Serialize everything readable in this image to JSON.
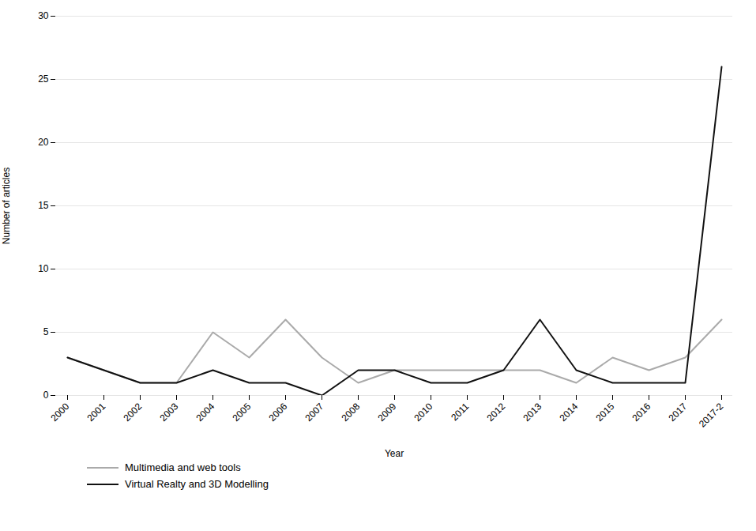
{
  "chart_data": {
    "type": "line",
    "xlabel": "Year",
    "ylabel": "Number of articles",
    "categories": [
      "2000",
      "2001",
      "2002",
      "2003",
      "2004",
      "2005",
      "2006",
      "2007",
      "2008",
      "2009",
      "2010",
      "2011",
      "2012",
      "2013",
      "2014",
      "2015",
      "2016",
      "2017",
      "2017-2"
    ],
    "series": [
      {
        "name": "Multimedia and web tools",
        "color": "#aaaaaa",
        "values": [
          3,
          2,
          1,
          1,
          5,
          3,
          6,
          3,
          1,
          2,
          2,
          2,
          2,
          2,
          1,
          3,
          2,
          3,
          6
        ]
      },
      {
        "name": "Virtual Realty and 3D Modelling",
        "color": "#111111",
        "values": [
          3,
          2,
          1,
          1,
          2,
          1,
          1,
          0,
          2,
          2,
          1,
          1,
          2,
          6,
          2,
          1,
          1,
          1,
          26
        ]
      }
    ],
    "ylim": [
      0,
      30
    ],
    "yticks": [
      0,
      5,
      10,
      15,
      20,
      25,
      30
    ],
    "grid": true,
    "legend": "bottom"
  }
}
